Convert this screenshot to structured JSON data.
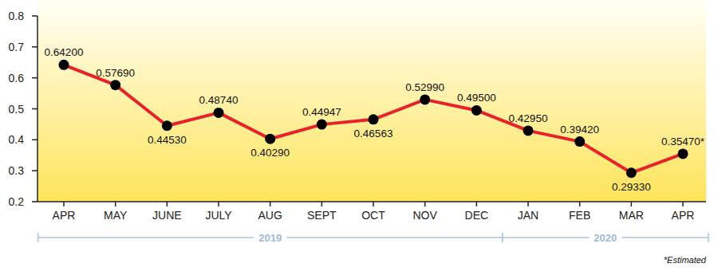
{
  "chart_data": {
    "type": "line",
    "categories": [
      "APR",
      "MAY",
      "JUNE",
      "JULY",
      "AUG",
      "SEPT",
      "OCT",
      "NOV",
      "DEC",
      "JAN",
      "FEB",
      "MAR",
      "APR"
    ],
    "values": [
      0.642,
      0.5769,
      0.4453,
      0.4874,
      0.4029,
      0.44947,
      0.46563,
      0.5299,
      0.495,
      0.4295,
      0.3942,
      0.2933,
      0.3547
    ],
    "value_labels": [
      "0.64200",
      "0.57690",
      "0.44530",
      "0.48740",
      "0.40290",
      "0.44947",
      "0.46563",
      "0.52990",
      "0.49500",
      "0.42950",
      "0.39420",
      "0.29330",
      "0.35470*"
    ],
    "color": "#e8212b",
    "marker": "circle",
    "ylim": [
      0.2,
      0.8
    ],
    "yticks": [
      0.2,
      0.3,
      0.4,
      0.5,
      0.6,
      0.7,
      0.8
    ],
    "grid": false,
    "data_labels": true,
    "groups": [
      {
        "label": "2019",
        "from": 0,
        "to": 8
      },
      {
        "label": "2020",
        "from": 9,
        "to": 12
      }
    ],
    "annotations": [
      "*Estimated"
    ]
  }
}
